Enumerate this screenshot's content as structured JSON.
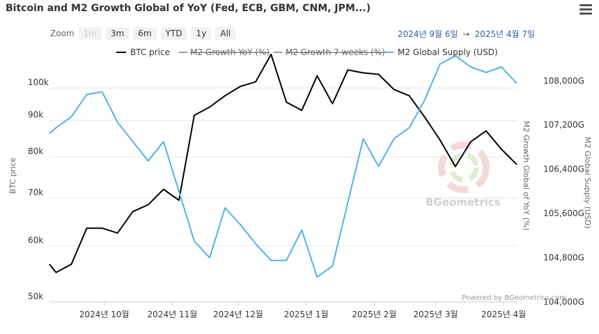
{
  "header": {
    "title": "Bitcoin and M2 Growth Global of YoY (Fed, ECB, GBM, CNM, JPM...)",
    "menu_icon": "hamburger-menu-icon"
  },
  "toolbar": {
    "zoom_label": "Zoom",
    "buttons": [
      {
        "label": "1m",
        "disabled": true
      },
      {
        "label": "3m",
        "disabled": false
      },
      {
        "label": "6m",
        "disabled": false
      },
      {
        "label": "YTD",
        "disabled": false
      },
      {
        "label": "1y",
        "disabled": false
      },
      {
        "label": "All",
        "disabled": false
      }
    ],
    "range_from": "2024년 9월 6일",
    "range_arrow": "→",
    "range_to": "2025년 4월 7일"
  },
  "chart_data": {
    "type": "line",
    "title": "Bitcoin and M2 Growth Global of YoY (Fed, ECB, GBM, CNM, JPM...)",
    "x_ticks": [
      "2024년 10월",
      "2024년 11월",
      "2024년 12월",
      "2025년 1월",
      "2025년 2월",
      "2025년 3월",
      "2025년 4월"
    ],
    "y_left": {
      "label": "BTC price",
      "ticks": [
        "50k",
        "60k",
        "70k",
        "80k",
        "90k",
        "100k"
      ],
      "ylim": [
        50000,
        108000
      ],
      "scale": "log"
    },
    "y_right_inner": {
      "label": "M2 Growth Global of YoY (%)"
    },
    "y_right_outer": {
      "label": "M2 Global Supply (USD)",
      "ticks": [
        "104,000G",
        "104,800G",
        "105,600G",
        "106,400G",
        "107,200G",
        "108,000G"
      ],
      "ylim": [
        104000,
        108300
      ]
    },
    "legend_position": "top",
    "colors": {
      "btc": "#000000",
      "m2": "#4fb3e6",
      "grid": "#e6e6e6"
    },
    "series": [
      {
        "name": "BTC price",
        "axis": "left",
        "x": [
          "2024-09-06",
          "2024-09-09",
          "2024-09-16",
          "2024-09-23",
          "2024-09-30",
          "2024-10-07",
          "2024-10-14",
          "2024-10-21",
          "2024-10-28",
          "2024-11-04",
          "2024-11-11",
          "2024-11-18",
          "2024-11-25",
          "2024-12-02",
          "2024-12-09",
          "2024-12-16",
          "2024-12-23",
          "2024-12-30",
          "2025-01-06",
          "2025-01-13",
          "2025-01-20",
          "2025-01-27",
          "2025-02-03",
          "2025-02-10",
          "2025-02-17",
          "2025-02-24",
          "2025-03-03",
          "2025-03-10",
          "2025-03-17",
          "2025-03-24",
          "2025-03-31",
          "2025-04-07"
        ],
        "values": [
          56500,
          55000,
          56500,
          63500,
          63500,
          62500,
          67000,
          68500,
          72000,
          69500,
          91500,
          94000,
          97500,
          100500,
          102000,
          111500,
          95500,
          93000,
          104000,
          95000,
          106000,
          105000,
          104500,
          99500,
          97500,
          91000,
          84500,
          77500,
          84000,
          87000,
          82000,
          78000
        ]
      },
      {
        "name": "M2 Growth YoY (%)",
        "axis": "right_inner",
        "hidden": true,
        "values": []
      },
      {
        "name": "M2 Growth 7 weeks (%)",
        "axis": "right_inner",
        "hidden": true,
        "values": []
      },
      {
        "name": "M2 Global Supply (USD)",
        "axis": "right_outer",
        "x": [
          "2024-09-06",
          "2024-09-09",
          "2024-09-16",
          "2024-09-23",
          "2024-09-30",
          "2024-10-07",
          "2024-10-14",
          "2024-10-21",
          "2024-10-28",
          "2024-11-04",
          "2024-11-11",
          "2024-11-18",
          "2024-11-25",
          "2024-12-02",
          "2024-12-09",
          "2024-12-16",
          "2024-12-23",
          "2024-12-30",
          "2025-01-06",
          "2025-01-13",
          "2025-01-20",
          "2025-01-27",
          "2025-02-03",
          "2025-02-10",
          "2025-02-17",
          "2025-02-24",
          "2025-03-03",
          "2025-03-10",
          "2025-03-17",
          "2025-03-24",
          "2025-03-31",
          "2025-04-07"
        ],
        "values": [
          107050,
          107150,
          107350,
          107750,
          107800,
          107250,
          106900,
          106550,
          106900,
          106000,
          105100,
          104800,
          105700,
          105400,
          105050,
          104750,
          104750,
          105300,
          104450,
          104650,
          105800,
          106950,
          106450,
          106950,
          107150,
          107650,
          108300,
          108450,
          108250,
          108150,
          108250,
          107950
        ]
      }
    ]
  },
  "legend": [
    {
      "label": "BTC price",
      "hidden": false,
      "color": "#000000"
    },
    {
      "label": "M2 Growth YoY (%)",
      "hidden": true,
      "color": "#666666"
    },
    {
      "label": "M2 Growth 7 weeks (%)",
      "hidden": true,
      "color": "#666666"
    },
    {
      "label": "M2 Global Supply (USD)",
      "hidden": false,
      "color": "#4fb3e6"
    }
  ],
  "watermark": {
    "text": "BGeometrics"
  },
  "credits": "Powered by BGeometrics.com"
}
